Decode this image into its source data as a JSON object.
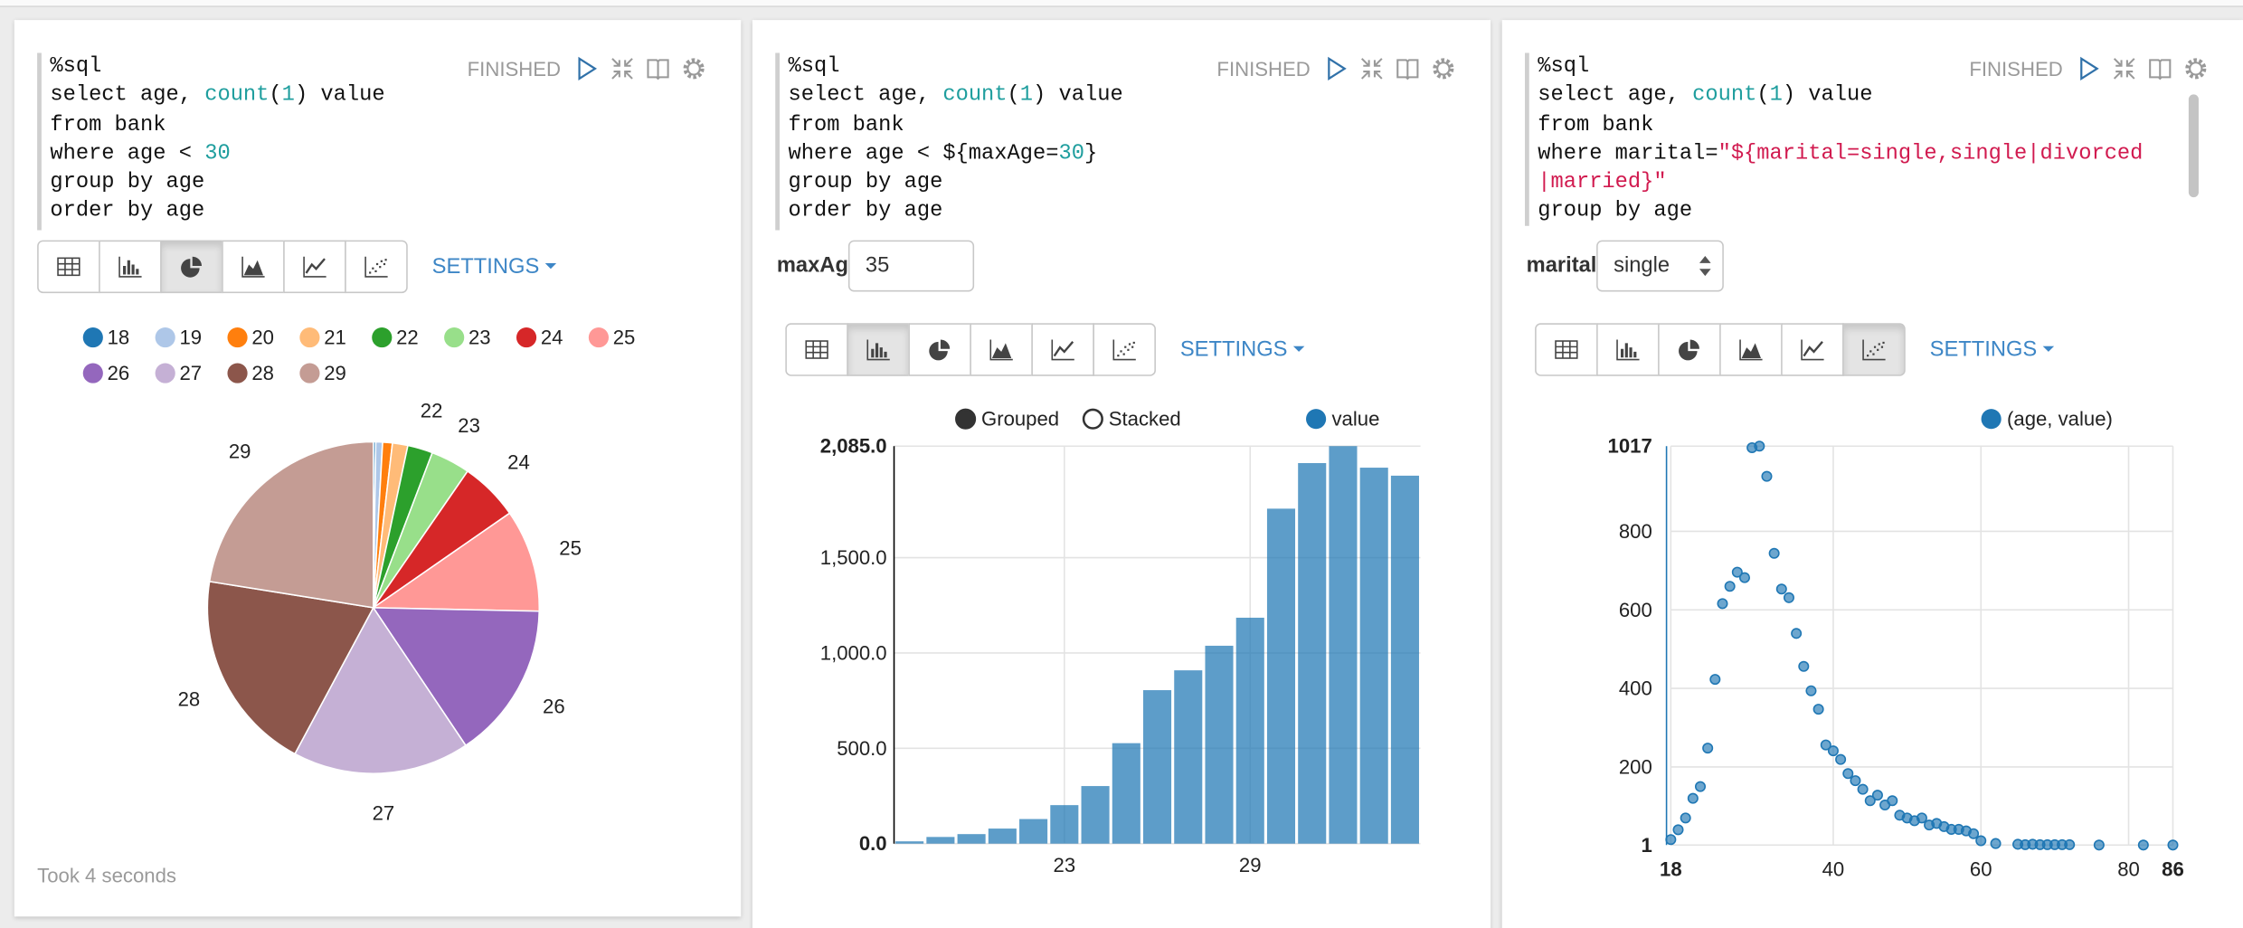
{
  "paragraphs": [
    {
      "code": [
        [
          {
            "text": "%sql"
          }
        ],
        [
          {
            "text": "select age, "
          },
          {
            "text": "count",
            "color": "#1f9e9e"
          },
          {
            "text": "("
          },
          {
            "text": "1",
            "color": "#1f9e9e"
          },
          {
            "text": ") value"
          }
        ],
        [
          {
            "text": "from bank"
          }
        ],
        [
          {
            "text": "where age < "
          },
          {
            "text": "30",
            "color": "#1f9e9e"
          }
        ],
        [
          {
            "text": "group by age"
          }
        ],
        [
          {
            "text": "order by age"
          }
        ]
      ],
      "status": "FINISHED",
      "settings": "SETTINGS",
      "footer": "Took 4 seconds"
    },
    {
      "code": [
        [
          {
            "text": "%sql"
          }
        ],
        [
          {
            "text": "select age, "
          },
          {
            "text": "count",
            "color": "#1f9e9e"
          },
          {
            "text": "("
          },
          {
            "text": "1",
            "color": "#1f9e9e"
          },
          {
            "text": ") value"
          }
        ],
        [
          {
            "text": "from bank"
          }
        ],
        [
          {
            "text": "where age < ${maxAge="
          },
          {
            "text": "30",
            "color": "#1f9e9e"
          },
          {
            "text": "}"
          }
        ],
        [
          {
            "text": "group by age"
          }
        ],
        [
          {
            "text": "order by age"
          }
        ]
      ],
      "status": "FINISHED",
      "form": {
        "label": "maxAg",
        "value": "35"
      },
      "settings": "SETTINGS"
    },
    {
      "code": [
        [
          {
            "text": "%sql"
          }
        ],
        [
          {
            "text": "select age, "
          },
          {
            "text": "count",
            "color": "#1f9e9e"
          },
          {
            "text": "("
          },
          {
            "text": "1",
            "color": "#1f9e9e"
          },
          {
            "text": ") value"
          }
        ],
        [
          {
            "text": "from bank"
          }
        ],
        [
          {
            "text": "where marital="
          },
          {
            "text": "\"${marital=single,single|divorced",
            "color": "#d11a4f"
          }
        ],
        [
          {
            "text": "|married}\"",
            "color": "#d11a4f"
          }
        ],
        [
          {
            "text": "group by age"
          }
        ]
      ],
      "status": "FINISHED",
      "form": {
        "label": "marital",
        "value": "single"
      },
      "settings": "SETTINGS"
    }
  ],
  "chart_data": [
    {
      "type": "pie",
      "categories": [
        "18",
        "19",
        "20",
        "21",
        "22",
        "23",
        "24",
        "25",
        "26",
        "27",
        "28",
        "29"
      ],
      "values": [
        12,
        35,
        50,
        79,
        129,
        202,
        302,
        527,
        805,
        909,
        1038,
        1185
      ],
      "colors": [
        "#1f77b4",
        "#aec7e8",
        "#ff7f0e",
        "#ffbb78",
        "#2ca02c",
        "#98df8a",
        "#d62728",
        "#ff9896",
        "#9467bd",
        "#c5b0d5",
        "#8c564b",
        "#c49c94"
      ]
    },
    {
      "type": "bar",
      "modes": [
        "Grouped",
        "Stacked"
      ],
      "categories": [
        null,
        null,
        null,
        null,
        null,
        "23",
        null,
        null,
        null,
        null,
        null,
        "29",
        null,
        null,
        null,
        null,
        null
      ],
      "series": [
        {
          "name": "value",
          "color": "#1f77b4",
          "values": [
            12,
            35,
            50,
            79,
            129,
            202,
            302,
            527,
            805,
            909,
            1038,
            1185,
            1757,
            1996,
            2085,
            1972,
            1930
          ]
        }
      ],
      "ylim": [
        0,
        2085
      ],
      "yticks": [
        {
          "value": 0,
          "label": "0.0"
        },
        {
          "value": 500,
          "label": "500.0"
        },
        {
          "value": 1000,
          "label": "1,000.0"
        },
        {
          "value": 1500,
          "label": "1,500.0"
        },
        {
          "value": 2085,
          "label": "2,085.0"
        }
      ],
      "grid": true
    },
    {
      "type": "scatter",
      "x": [
        18,
        19,
        20,
        21,
        22,
        23,
        24,
        25,
        26,
        27,
        28,
        29,
        30,
        31,
        32,
        33,
        34,
        35,
        36,
        37,
        38,
        39,
        40,
        41,
        42,
        43,
        44,
        45,
        46,
        47,
        48,
        49,
        50,
        51,
        52,
        53,
        54,
        55,
        56,
        57,
        58,
        59,
        60,
        62,
        65,
        66,
        67,
        68,
        69,
        70,
        71,
        72,
        76,
        82,
        86
      ],
      "series": [
        {
          "name": "(age, value)",
          "color": "#1f77b4",
          "values": [
            15,
            40,
            70,
            120,
            150,
            248,
            423,
            616,
            660,
            696,
            682,
            1013,
            1017,
            940,
            744,
            653,
            631,
            540,
            456,
            394,
            347,
            256,
            241,
            219,
            183,
            165,
            143,
            114,
            128,
            103,
            114,
            77,
            70,
            63,
            70,
            52,
            56,
            48,
            41,
            41,
            37,
            30,
            12,
            5,
            3,
            2,
            3,
            2,
            2,
            2,
            2,
            2,
            1,
            1,
            1
          ]
        }
      ],
      "xlim": [
        18,
        86
      ],
      "ylim": [
        1,
        1017
      ],
      "xticks": [
        18,
        40,
        60,
        80,
        86
      ],
      "yticks": [
        1,
        200,
        400,
        600,
        800,
        1017
      ],
      "grid": true
    }
  ]
}
